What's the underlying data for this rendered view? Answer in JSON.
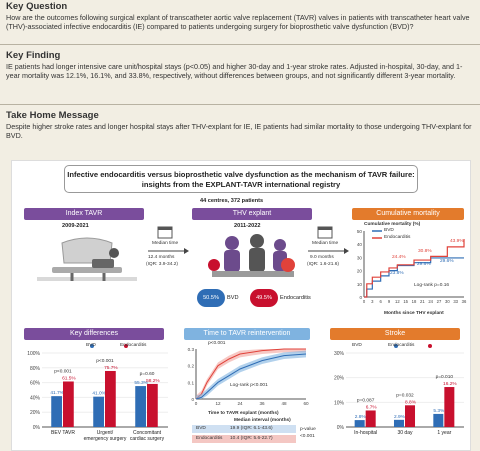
{
  "key_question": {
    "heading": "Key Question",
    "text": "How are the outcomes following surgical explant of transcatheter aortic valve replacement (TAVR) valves in patients with transcatheter heart valve (THV)-associated infective endocarditis (IE) compared to patients undergoing surgery for bioprosthetic valve dysfunction (BVD)?"
  },
  "key_finding": {
    "heading": "Key Finding",
    "text": "IE patients had longer intensive care unit/hospital stays (p<0.05) and higher 30-day and 1-year stroke rates. Adjusted in-hospital, 30-day, and 1-year mortality was 12.1%, 16.1%, and 33.8%, respectively, without differences between groups, and not significantly different 3-year mortality."
  },
  "take_home": {
    "heading": "Take Home Message",
    "text": "Despite higher stroke rates and longer hospital stays after THV-explant for IE, IE patients had similar mortality to those undergoing THV-explant for BVD."
  },
  "abstract": {
    "title_line1": "Infective endocarditis versus bioprosthetic valve dysfunction as the mechanism of TAVR failure:",
    "title_line2": "insights from the EXPLANT-TAVR international registry",
    "centres": "44 centres, 372 patients",
    "index": {
      "label": "Index TAVR",
      "years": "2009-2021"
    },
    "interval1": {
      "label": "Median time",
      "value": "12.4 months",
      "iqr": "(IQR: 3.9-34.2)"
    },
    "explant": {
      "label": "THV explant",
      "years": "2011-2022"
    },
    "interval2": {
      "label": "Median time",
      "value": "9.0 months",
      "iqr": "(IQR: 1.6-21.6)"
    },
    "split": {
      "bvd_pct": "50.5%",
      "bvd_label": "BVD",
      "ie_pct": "49.5%",
      "ie_label": "Endocarditis"
    },
    "colors": {
      "bvd": "#2f6db5",
      "ie": "#c8102e",
      "purple": "#7a4d9c",
      "orange": "#e37b2c",
      "lightblue": "#7fb3e0",
      "red": "#e0423a"
    }
  },
  "cumulative_mortality": {
    "ribbon": "Cumulative mortality",
    "ylabel": "Cumulative mortality (%)",
    "legend_bvd": "BVD",
    "legend_ie": "Endocarditis",
    "logrank": "Log-rank p=0.16",
    "xlabel": "Months since THV explant",
    "annot": [
      "24.4%",
      "23.8%",
      "30.8%",
      "29.6%",
      "29.6%",
      "43.9%"
    ]
  },
  "key_differences": {
    "ribbon": "Key differences",
    "legend_bvd": "BVD",
    "legend_ie": "Endocarditis"
  },
  "reintervention": {
    "ribbon": "Time to TAVR reintervention",
    "pval_top": "p<0.001",
    "logrank": "Log-rank p<0.001",
    "xlabel": "Time to TAVR explant (months)",
    "table_header": "Median interval (months)",
    "rows": [
      {
        "label": "BVD",
        "value": "19.9 (IQR: 6.1-43.6)"
      },
      {
        "label": "Endocarditis",
        "value": "10.4 (IQR: 5.6-22.7)"
      }
    ],
    "pvalue": "p-value",
    "pvalue2": "<0.001"
  },
  "stroke": {
    "ribbon": "Stroke",
    "legend_bvd": "BVD",
    "legend_ie": "Endocarditis"
  },
  "chart_data": [
    {
      "type": "bar",
      "categories": [
        "BEV TAVR",
        "Urgent/ emergency surgery",
        "Concomitant cardiac surgery"
      ],
      "series": [
        {
          "name": "BVD",
          "values": [
            41.7,
            41.0,
            55.3
          ]
        },
        {
          "name": "Endocarditis",
          "values": [
            61.5,
            75.7,
            58.2
          ]
        }
      ],
      "data_labels": {
        "BVD": [
          "41.7%",
          "41.0%",
          "55.3%"
        ],
        "Endocarditis": [
          "61.5%",
          "75.7%",
          "58.2%"
        ]
      },
      "pvalues": [
        "p<0.001",
        "p<0.001",
        "p=0.60"
      ],
      "yticks": [
        "0%",
        "20%",
        "40%",
        "60%",
        "80%",
        "100%"
      ],
      "ylim": [
        0,
        100
      ]
    },
    {
      "type": "bar",
      "categories": [
        "In-hospital",
        "30 day",
        "1 year"
      ],
      "series": [
        {
          "name": "BVD",
          "values": [
            2.8,
            2.9,
            5.3
          ]
        },
        {
          "name": "Endocarditis",
          "values": [
            6.7,
            8.8,
            16.2
          ]
        }
      ],
      "data_labels": {
        "BVD": [
          "2.8%",
          "2.9%",
          "5.3%"
        ],
        "Endocarditis": [
          "6.7%",
          "8.8%",
          "16.2%"
        ]
      },
      "pvalues": [
        "p=0.087",
        "p=0.032",
        "p=0.010"
      ],
      "yticks": [
        "0%",
        "10%",
        "20%",
        "30%"
      ],
      "ylim": [
        0,
        30
      ]
    },
    {
      "type": "line",
      "xticks": [
        "0",
        "3",
        "6",
        "9",
        "12",
        "15",
        "18",
        "21",
        "24",
        "27",
        "30",
        "33",
        "36"
      ],
      "yticks": [
        "0",
        "10",
        "20",
        "30",
        "40",
        "50"
      ],
      "ylim": [
        0,
        50
      ],
      "series": [
        {
          "name": "BVD",
          "x": [
            0,
            1,
            3,
            6,
            9,
            12,
            18,
            24,
            30,
            36
          ],
          "y": [
            0,
            6,
            12,
            16,
            20,
            23.8,
            26,
            29.6,
            29.6,
            29.6
          ]
        },
        {
          "name": "Endocarditis",
          "x": [
            0,
            1,
            3,
            6,
            9,
            12,
            18,
            24,
            30,
            36
          ],
          "y": [
            0,
            10,
            15,
            19,
            22,
            24.4,
            28,
            30.8,
            38,
            43.9
          ]
        }
      ]
    },
    {
      "type": "area",
      "xticks": [
        "0",
        "12",
        "24",
        "36",
        "48",
        "60"
      ],
      "yticks": [
        "0",
        "0.1",
        "0.2",
        "0.3"
      ],
      "ylim": [
        0,
        0.3
      ],
      "series": [
        {
          "name": "Endocarditis",
          "x": [
            0,
            3,
            6,
            9,
            12,
            18,
            24,
            36,
            48,
            60
          ],
          "y": [
            0,
            0.03,
            0.1,
            0.15,
            0.2,
            0.24,
            0.27,
            0.29,
            0.3,
            0.3
          ]
        },
        {
          "name": "BVD",
          "x": [
            0,
            3,
            6,
            9,
            12,
            18,
            24,
            36,
            48,
            60
          ],
          "y": [
            0,
            0.01,
            0.04,
            0.07,
            0.1,
            0.14,
            0.18,
            0.23,
            0.26,
            0.27
          ]
        }
      ]
    }
  ]
}
